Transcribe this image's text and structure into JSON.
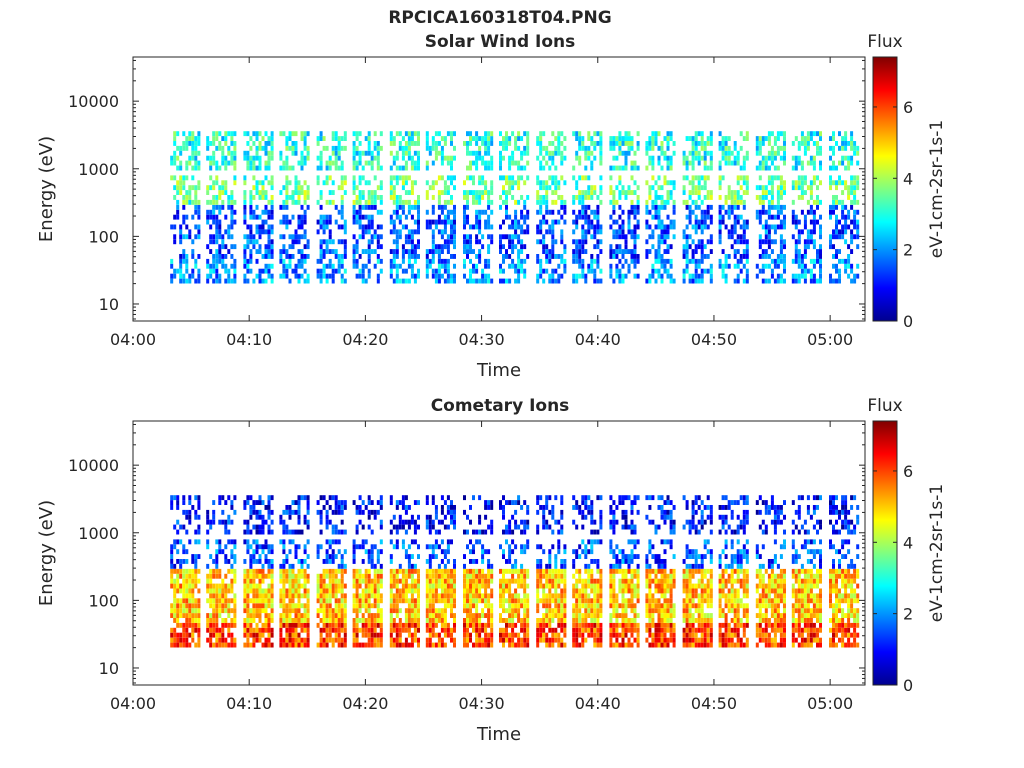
{
  "figure": {
    "title": "RPCICA160318T04.PNG"
  },
  "chart_data": [
    {
      "type": "heatmap",
      "title": "Solar Wind Ions",
      "xlabel": "Time",
      "ylabel": "Energy (eV)",
      "y_scale": "log",
      "ylim": [
        5.6,
        45000
      ],
      "xlim": [
        "04:00",
        "05:03"
      ],
      "x_ticks": [
        "04:00",
        "04:10",
        "04:20",
        "04:30",
        "04:40",
        "04:50",
        "05:00"
      ],
      "y_ticks": [
        10,
        100,
        1000,
        10000
      ],
      "y_tick_labels": [
        "10",
        "100",
        "1000",
        "10000"
      ],
      "colorbar": {
        "title": "Flux",
        "label": "eV-1cm-2sr-1s-1",
        "range": [
          0,
          7.4
        ],
        "ticks": [
          0,
          2,
          4,
          6
        ],
        "colormap": "jet"
      },
      "grid": false,
      "sweeps_start_minutes": [
        3.2,
        6.3,
        9.5,
        12.6,
        15.8,
        18.9,
        22.1,
        25.2,
        28.4,
        31.5,
        34.7,
        37.8,
        41.0,
        44.1,
        47.3,
        50.4,
        53.6,
        56.7,
        59.9
      ],
      "sweep_duration_minutes": 2.6,
      "typical_flux": {
        "energy_band_eV": [
          "20-50",
          "50-300",
          "300-800",
          "1000-3500"
        ],
        "flux": [
          2.0,
          1.5,
          3.5,
          3.0
        ]
      }
    },
    {
      "type": "heatmap",
      "title": "Cometary Ions",
      "xlabel": "Time",
      "ylabel": "Energy (eV)",
      "y_scale": "log",
      "ylim": [
        5.6,
        45000
      ],
      "xlim": [
        "04:00",
        "05:03"
      ],
      "x_ticks": [
        "04:00",
        "04:10",
        "04:20",
        "04:30",
        "04:40",
        "04:50",
        "05:00"
      ],
      "y_ticks": [
        10,
        100,
        1000,
        10000
      ],
      "y_tick_labels": [
        "10",
        "100",
        "1000",
        "10000"
      ],
      "colorbar": {
        "title": "Flux",
        "label": "eV-1cm-2sr-1s-1",
        "range": [
          0,
          7.4
        ],
        "ticks": [
          0,
          2,
          4,
          6
        ],
        "colormap": "jet"
      },
      "grid": false,
      "sweeps_start_minutes": [
        3.2,
        6.3,
        9.5,
        12.6,
        15.8,
        18.9,
        22.1,
        25.2,
        28.4,
        31.5,
        34.7,
        37.8,
        41.0,
        44.1,
        47.3,
        50.4,
        53.6,
        56.7,
        59.9
      ],
      "sweep_duration_minutes": 2.6,
      "typical_flux": {
        "energy_band_eV": [
          "20-50",
          "50-300",
          "300-800",
          "1000-3500"
        ],
        "flux": [
          6.0,
          5.0,
          1.5,
          1.0
        ]
      }
    }
  ]
}
